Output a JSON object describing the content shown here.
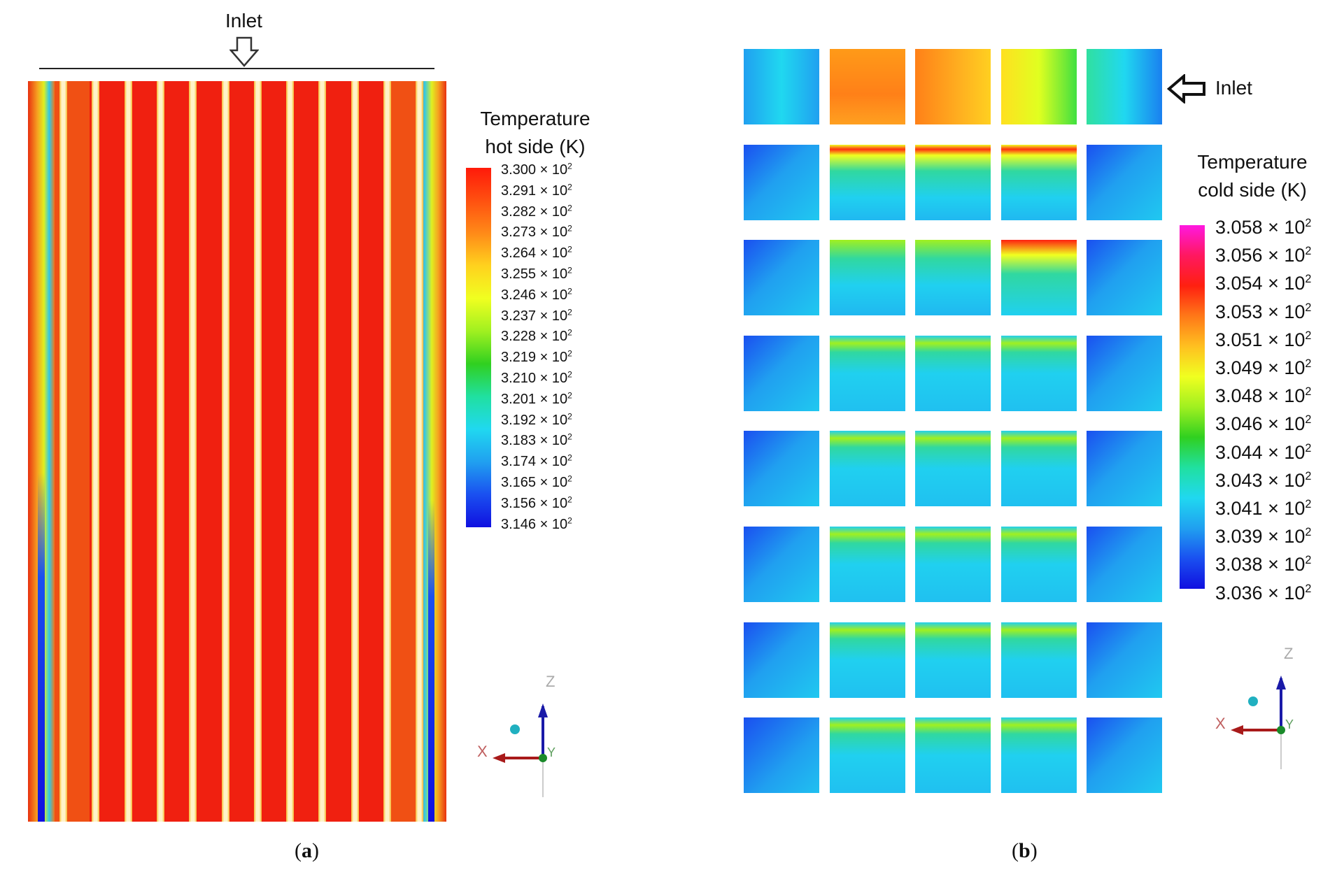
{
  "panel_a": {
    "inlet_label": "Inlet",
    "legend_title_line1": "Temperature",
    "legend_title_line2": "hot side (K)",
    "ticks": [
      "3.300",
      "3.291",
      "3.282",
      "3.273",
      "3.264",
      "3.255",
      "3.246",
      "3.237",
      "3.228",
      "3.219",
      "3.210",
      "3.201",
      "3.192",
      "3.183",
      "3.174",
      "3.165",
      "3.156",
      "3.146"
    ],
    "tick_suffix": "× 10",
    "tick_exponent": "2",
    "caption_letter": "a",
    "axes": {
      "z": "Z",
      "x": "X",
      "y": "Y"
    }
  },
  "panel_b": {
    "inlet_label": "Inlet",
    "legend_title_line1": "Temperature",
    "legend_title_line2": "cold side (K)",
    "ticks": [
      "3.058",
      "3.056",
      "3.054",
      "3.053",
      "3.051",
      "3.049",
      "3.048",
      "3.046",
      "3.044",
      "3.043",
      "3.041",
      "3.039",
      "3.038",
      "3.036"
    ],
    "tick_suffix": "× 10",
    "tick_exponent": "2",
    "caption_letter": "b",
    "axes": {
      "z": "Z",
      "x": "X",
      "y": "Y"
    },
    "grid": {
      "rows": 8,
      "cols": 5
    }
  },
  "colors": {
    "hot_red": "#f02010",
    "hot_orange": "#f07818",
    "channel_cream": "#fff3c8",
    "scale_hot": [
      "#ff1a0a",
      "#ff5010",
      "#ff8a18",
      "#ffd21e",
      "#f0ff20",
      "#a0f020",
      "#30d020",
      "#20e0a0",
      "#20d8f0",
      "#20a0f0",
      "#1a50f0",
      "#1010e0"
    ],
    "scale_cold": [
      "#ff18e0",
      "#ff1860",
      "#ff2010",
      "#ff7818",
      "#ffc020",
      "#f0ff20",
      "#a0f020",
      "#30d020",
      "#20e0a0",
      "#20d8f0",
      "#20a0f0",
      "#1a50f0",
      "#1010e0"
    ]
  }
}
